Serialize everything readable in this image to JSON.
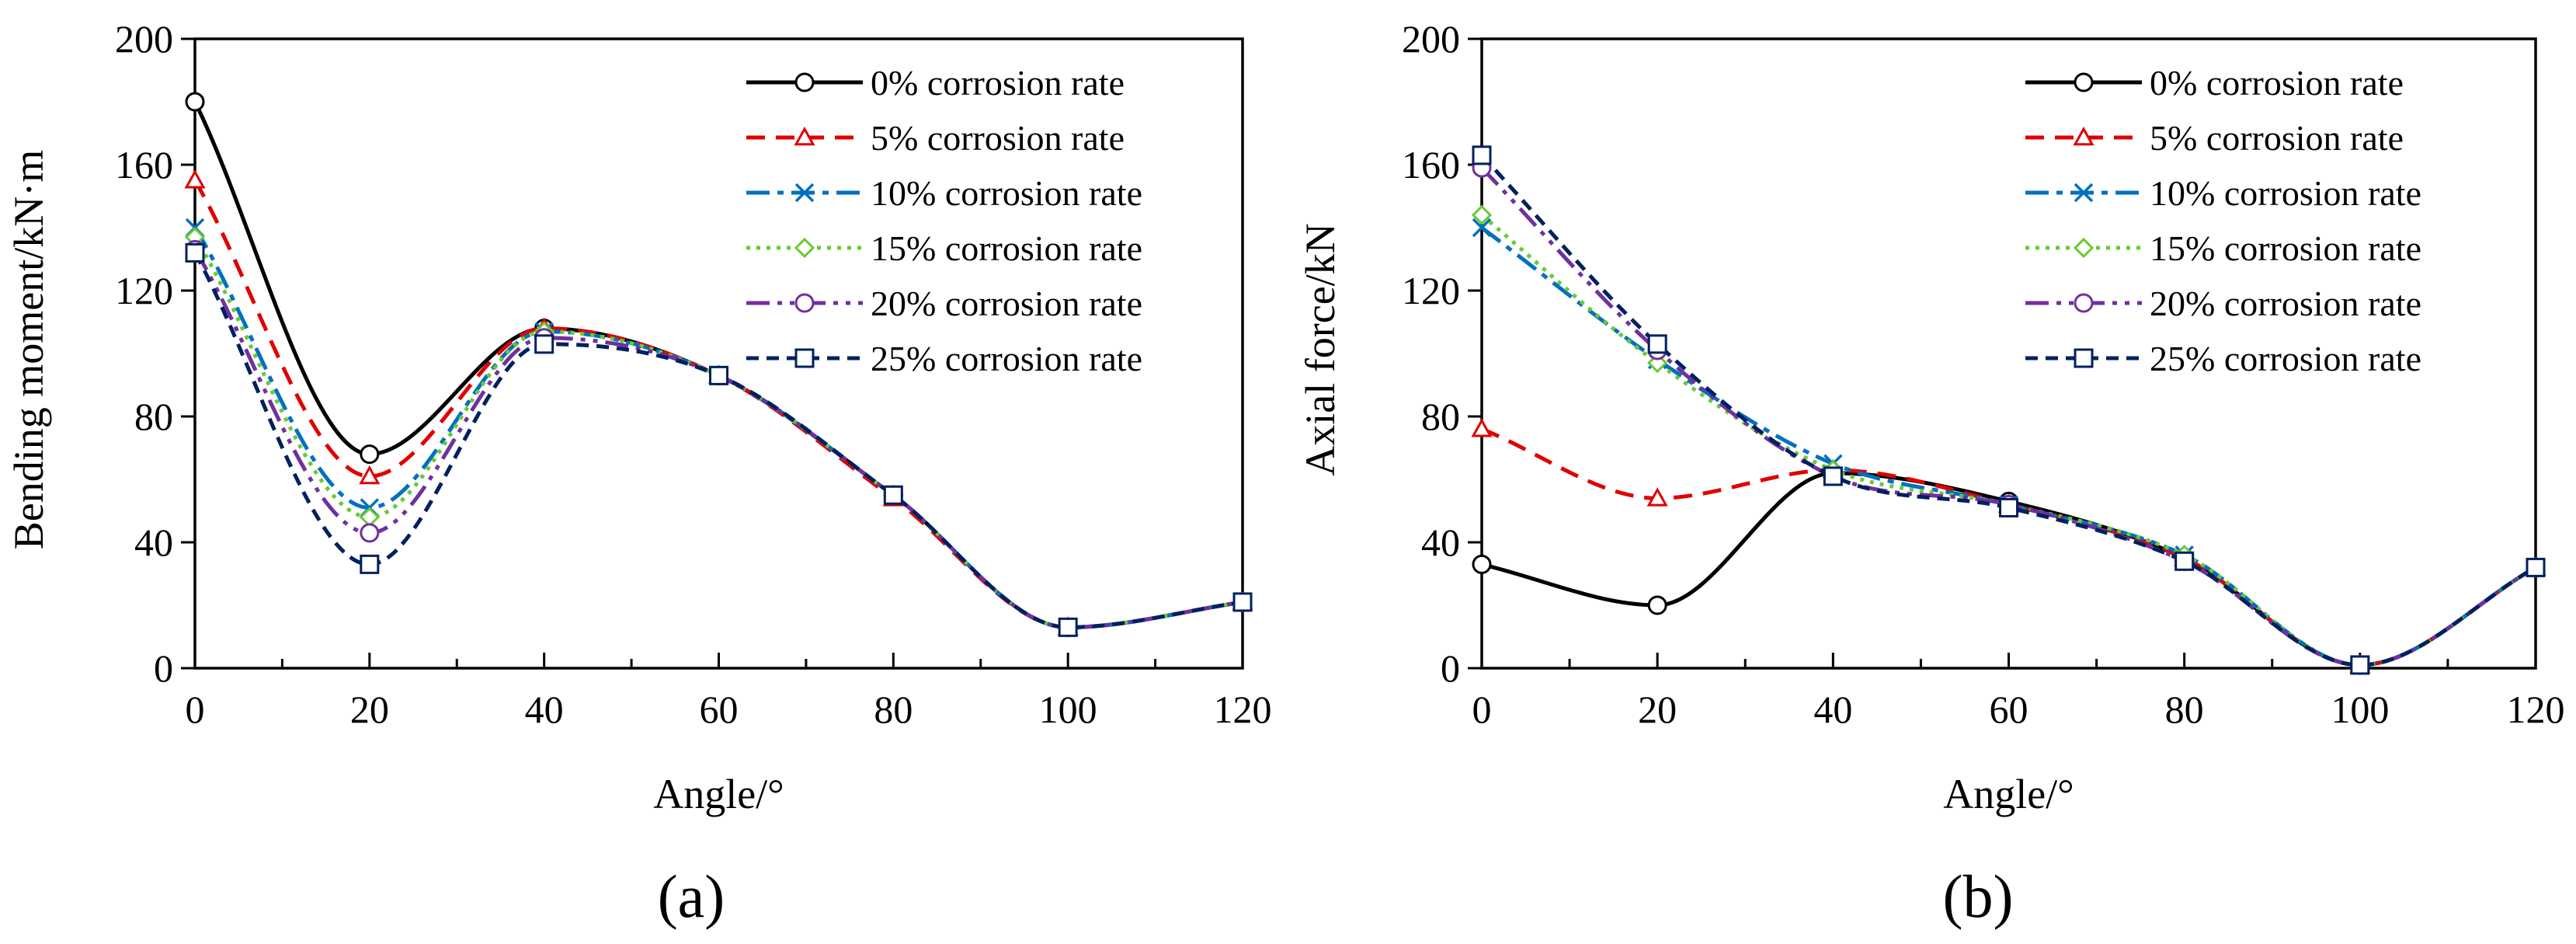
{
  "chart_data": [
    {
      "type": "line",
      "panel_label": "(a)",
      "xlabel": "Angle/°",
      "ylabel": "Bending moment/kN·m",
      "xlim": [
        0,
        120
      ],
      "ylim": [
        0,
        200
      ],
      "xticks": [
        0,
        20,
        40,
        60,
        80,
        100,
        120
      ],
      "yticks": [
        0,
        40,
        80,
        120,
        160,
        200
      ],
      "legend_position": "top-right",
      "x": [
        0,
        20,
        40,
        60,
        80,
        100,
        120
      ],
      "series": [
        {
          "name": "0% corrosion rate",
          "values": [
            180,
            68,
            108,
            93,
            55,
            13,
            21
          ]
        },
        {
          "name": "5% corrosion rate",
          "values": [
            155,
            61,
            108,
            93,
            54,
            13,
            21
          ]
        },
        {
          "name": "10% corrosion rate",
          "values": [
            140,
            51,
            107,
            93,
            55,
            13,
            21
          ]
        },
        {
          "name": "15% corrosion rate",
          "values": [
            137,
            48,
            107,
            93,
            55,
            13,
            21
          ]
        },
        {
          "name": "20% corrosion rate",
          "values": [
            133,
            43,
            105,
            93,
            55,
            13,
            21
          ]
        },
        {
          "name": "25% corrosion rate",
          "values": [
            132,
            33,
            103,
            93,
            55,
            13,
            21
          ]
        }
      ]
    },
    {
      "type": "line",
      "panel_label": "(b)",
      "xlabel": "Angle/°",
      "ylabel": "Axial force/kN",
      "xlim": [
        0,
        120
      ],
      "ylim": [
        0,
        200
      ],
      "xticks": [
        0,
        20,
        40,
        60,
        80,
        100,
        120
      ],
      "yticks": [
        0,
        40,
        80,
        120,
        160,
        200
      ],
      "legend_position": "top-right",
      "x": [
        0,
        20,
        40,
        60,
        80,
        100,
        120
      ],
      "series": [
        {
          "name": "0% corrosion rate",
          "values": [
            33,
            20,
            62,
            53,
            35,
            1,
            32
          ]
        },
        {
          "name": "5% corrosion rate",
          "values": [
            76,
            54,
            63,
            52,
            35,
            1,
            32
          ]
        },
        {
          "name": "10% corrosion rate",
          "values": [
            140,
            98,
            65,
            52,
            36,
            1,
            32
          ]
        },
        {
          "name": "15% corrosion rate",
          "values": [
            144,
            97,
            63,
            52,
            36,
            1,
            32
          ]
        },
        {
          "name": "20% corrosion rate",
          "values": [
            159,
            101,
            61,
            52,
            34,
            1,
            32
          ]
        },
        {
          "name": "25% corrosion rate",
          "values": [
            163,
            103,
            61,
            51,
            34,
            1,
            32
          ]
        }
      ]
    }
  ],
  "styles": [
    {
      "color": "#000000",
      "dash": "",
      "marker": "circle"
    },
    {
      "color": "#e00000",
      "dash": "24,14",
      "marker": "triangle"
    },
    {
      "color": "#0070c0",
      "dash": "30,10,8,10",
      "marker": "x"
    },
    {
      "color": "#66cc33",
      "dash": "5,8",
      "marker": "diamond"
    },
    {
      "color": "#7030a0",
      "dash": "30,10,6,10,6,10",
      "marker": "circle"
    },
    {
      "color": "#002060",
      "dash": "16,10",
      "marker": "square"
    }
  ]
}
